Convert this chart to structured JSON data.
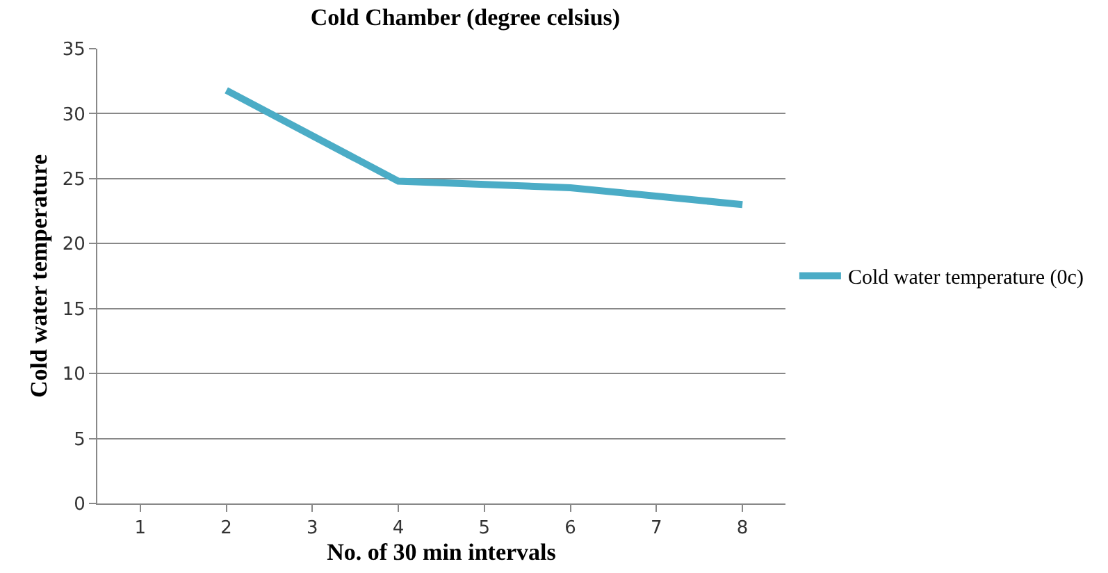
{
  "chart_data": {
    "type": "line",
    "title": "Cold Chamber (degree celsius)",
    "xlabel": "No. of 30 min intervals",
    "ylabel": "Cold water temperature",
    "x": [
      2,
      4,
      6,
      8
    ],
    "series": [
      {
        "name": "Cold water temperature (0c)",
        "color": "#4bacc6",
        "values": [
          31.8,
          24.8,
          24.3,
          23.0
        ]
      }
    ],
    "xlim": [
      0.5,
      8.5
    ],
    "xticks": [
      1,
      2,
      3,
      4,
      5,
      6,
      7,
      8
    ],
    "ylim": [
      0,
      35
    ],
    "yticks": [
      0,
      5,
      10,
      15,
      20,
      25,
      30,
      35
    ],
    "grid": "y",
    "legend": "right",
    "marker": "none",
    "line_style": "solid"
  }
}
